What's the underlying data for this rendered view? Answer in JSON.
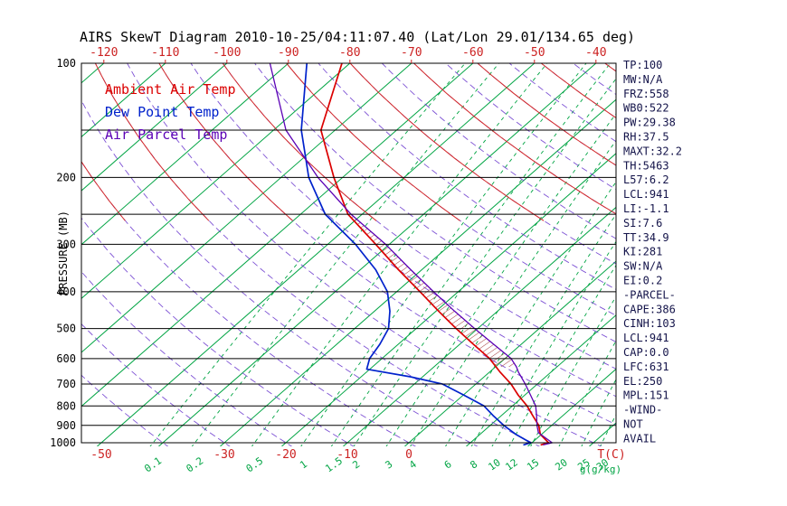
{
  "title": "AIRS SkewT Diagram 2010-10-25/04:11:07.40 (Lat/Lon 29.01/134.65 deg)",
  "legend": [
    {
      "label": "Ambient Air Temp",
      "color": "#DB0000"
    },
    {
      "label": "Dew Point Temp",
      "color": "#0022CC"
    },
    {
      "label": "Air Parcel Temp",
      "color": "#5B00B5"
    }
  ],
  "axes": {
    "ylabel": "PRESSURE (MB)",
    "pressure_ticks": [
      100,
      200,
      300,
      400,
      500,
      600,
      700,
      800,
      900,
      1000
    ],
    "pressure_lines": [
      100,
      150,
      200,
      250,
      300,
      400,
      500,
      600,
      700,
      800,
      900,
      1000
    ],
    "top_temp_ticks": [
      -120,
      -110,
      -100,
      -90,
      -80,
      -70,
      -60,
      -50,
      -40
    ],
    "bottom_temp_ticks": [
      -50,
      -30,
      -20,
      -10,
      0
    ],
    "mixing_ratio_ticks": [
      0.1,
      0.2,
      0.5,
      1,
      1.5,
      2,
      3,
      4,
      6,
      8,
      10,
      12,
      15,
      20,
      25,
      30
    ],
    "temp_unit": "T(C)",
    "mixing_unit": "g(g/kg)"
  },
  "colors": {
    "isotherm": "#00A443",
    "mixing": "#00A443",
    "adiabat": "#6633CC",
    "upper": "#D42A2A",
    "axis_red": "#CC2222",
    "stats": "#14144A",
    "hatch": "#A03535"
  },
  "stats": {
    "lines": [
      "TP:100",
      "MW:N/A",
      "FRZ:558",
      "WB0:522",
      "PW:29.38",
      "RH:37.5",
      "MAXT:32.2",
      "TH:5463",
      "L57:6.2",
      "LCL:941",
      "LI:-1.1",
      "SI:7.6",
      "TT:34.9",
      "KI:281",
      "SW:N/A",
      "EI:0.2",
      "-PARCEL-",
      "CAPE:386",
      "CINH:103",
      "LCL:941",
      "CAP:0.0",
      "LFC:631",
      "EL:250",
      "MPL:151",
      "-WIND-",
      "NOT",
      "AVAIL"
    ]
  },
  "chart_data": {
    "type": "line",
    "x": "temperature_C",
    "y": "pressure_mb",
    "y_scale": "log",
    "ylim": [
      100,
      1030
    ],
    "xlim_at_surface": [
      -55,
      35
    ],
    "grid": "skew-t log-p (isotherms, mixing-ratio lines, dry adiabats)",
    "series": [
      {
        "name": "Ambient Air Temp",
        "color": "#DB0000",
        "points": [
          [
            1013,
            21.8
          ],
          [
            1000,
            22.7
          ],
          [
            950,
            19.8
          ],
          [
            900,
            17.9
          ],
          [
            850,
            15.2
          ],
          [
            800,
            12.4
          ],
          [
            750,
            9.0
          ],
          [
            700,
            5.7
          ],
          [
            650,
            1.6
          ],
          [
            600,
            -2.5
          ],
          [
            550,
            -7.8
          ],
          [
            500,
            -13.5
          ],
          [
            450,
            -19.6
          ],
          [
            400,
            -26.2
          ],
          [
            350,
            -33.8
          ],
          [
            300,
            -42.2
          ],
          [
            250,
            -52.3
          ],
          [
            200,
            -61.4
          ],
          [
            150,
            -72.3
          ],
          [
            100,
            -81.3
          ]
        ]
      },
      {
        "name": "Dew Point Temp",
        "color": "#0022CC",
        "points": [
          [
            1013,
            19.0
          ],
          [
            1000,
            19.8
          ],
          [
            950,
            15.8
          ],
          [
            900,
            12.2
          ],
          [
            850,
            8.8
          ],
          [
            800,
            5.4
          ],
          [
            750,
            0.2
          ],
          [
            700,
            -5.5
          ],
          [
            670,
            -12.0
          ],
          [
            640,
            -20.5
          ],
          [
            600,
            -22.0
          ],
          [
            550,
            -23.0
          ],
          [
            500,
            -24.5
          ],
          [
            450,
            -27.5
          ],
          [
            400,
            -31.5
          ],
          [
            350,
            -37.5
          ],
          [
            300,
            -45.5
          ],
          [
            250,
            -56.0
          ],
          [
            200,
            -65.5
          ],
          [
            150,
            -75.5
          ],
          [
            100,
            -87.0
          ]
        ]
      },
      {
        "name": "Air Parcel Temp",
        "color": "#5B00B5",
        "points": [
          [
            1013,
            22.2
          ],
          [
            1000,
            23.3
          ],
          [
            941,
            19.2
          ],
          [
            900,
            17.6
          ],
          [
            850,
            15.8
          ],
          [
            800,
            13.8
          ],
          [
            750,
            11.0
          ],
          [
            700,
            8.0
          ],
          [
            650,
            4.6
          ],
          [
            631,
            3.4
          ],
          [
            600,
            1.0
          ],
          [
            550,
            -4.5
          ],
          [
            500,
            -10.5
          ],
          [
            450,
            -17.0
          ],
          [
            400,
            -24.0
          ],
          [
            350,
            -31.8
          ],
          [
            300,
            -40.6
          ],
          [
            250,
            -51.8
          ],
          [
            200,
            -64.0
          ],
          [
            150,
            -78.0
          ],
          [
            100,
            -93.0
          ]
        ]
      }
    ],
    "cape_region": {
      "from_pressure": 631,
      "to_pressure": 250,
      "between": [
        "Air Parcel Temp",
        "Ambient Air Temp"
      ]
    }
  }
}
